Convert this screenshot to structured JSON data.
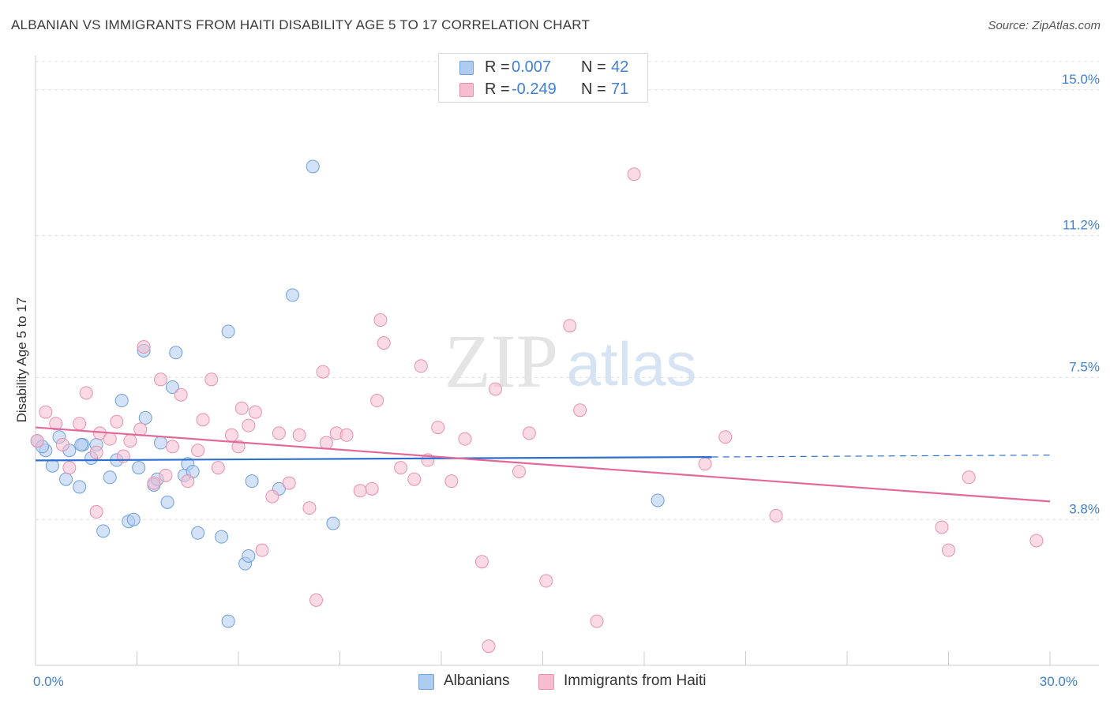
{
  "title": "ALBANIAN VS IMMIGRANTS FROM HAITI DISABILITY AGE 5 TO 17 CORRELATION CHART",
  "source": "Source: ZipAtlas.com",
  "watermark": {
    "zip": "ZIP",
    "atlas": "atlas"
  },
  "colors": {
    "blue_fill": "#aecbf0",
    "blue_stroke": "#6f9fdc",
    "blue_line": "#2d6fcc",
    "pink_fill": "#f6bdd0",
    "pink_stroke": "#e98fae",
    "pink_line": "#e3689a",
    "axis_label": "#3f7fd6",
    "grid": "#dddddd"
  },
  "legend_top": {
    "rows": [
      {
        "series": "Albanians",
        "r_label": "R =",
        "r_value": "0.007",
        "n_label": "N =",
        "n_value": "42"
      },
      {
        "series": "Immigrants from Haiti",
        "r_label": "R =",
        "r_value": "-0.249",
        "n_label": "N =",
        "n_value": "71"
      }
    ]
  },
  "legend_bottom": [
    "Albanians",
    "Immigrants from Haiti"
  ],
  "chart_data": {
    "type": "scatter",
    "title": "ALBANIAN VS IMMIGRANTS FROM HAITI DISABILITY AGE 5 TO 17 CORRELATION CHART",
    "xlabel": "",
    "ylabel": "Disability Age 5 to 17",
    "xlim": [
      0,
      30
    ],
    "ylim": [
      0,
      15.9
    ],
    "x_tick_labels": [
      {
        "value": 0,
        "label": "0.0%"
      },
      {
        "value": 30,
        "label": "30.0%"
      }
    ],
    "y_ticks": [
      {
        "value": 3.8,
        "label": "3.8%"
      },
      {
        "value": 7.5,
        "label": "7.5%"
      },
      {
        "value": 11.2,
        "label": "11.2%"
      },
      {
        "value": 15.0,
        "label": "15.0%"
      }
    ],
    "grid": "horizontal dashed",
    "legend_placement": "top-center and bottom-center",
    "series": [
      {
        "name": "Albanians",
        "color": "#aecbf0",
        "trend": {
          "x": [
            0,
            20
          ],
          "y": [
            5.34,
            5.43
          ],
          "dashed_extension_to": 30,
          "y_at_extension": 5.48
        },
        "points": [
          [
            0.05,
            5.85
          ],
          [
            0.3,
            5.6
          ],
          [
            0.5,
            5.2
          ],
          [
            0.7,
            5.95
          ],
          [
            0.9,
            4.85
          ],
          [
            1.0,
            5.6
          ],
          [
            1.3,
            4.65
          ],
          [
            1.4,
            5.75
          ],
          [
            1.65,
            5.4
          ],
          [
            1.8,
            5.75
          ],
          [
            2.0,
            3.5
          ],
          [
            2.2,
            4.9
          ],
          [
            2.4,
            5.35
          ],
          [
            2.55,
            6.9
          ],
          [
            2.75,
            3.75
          ],
          [
            2.9,
            3.8
          ],
          [
            3.05,
            5.15
          ],
          [
            3.2,
            8.2
          ],
          [
            3.25,
            6.45
          ],
          [
            3.5,
            4.7
          ],
          [
            3.6,
            4.85
          ],
          [
            3.7,
            5.8
          ],
          [
            3.9,
            4.25
          ],
          [
            4.05,
            7.25
          ],
          [
            4.15,
            8.15
          ],
          [
            4.4,
            4.95
          ],
          [
            4.5,
            5.25
          ],
          [
            4.65,
            5.05
          ],
          [
            4.8,
            3.45
          ],
          [
            5.5,
            3.35
          ],
          [
            5.7,
            8.7
          ],
          [
            6.2,
            2.65
          ],
          [
            6.3,
            2.85
          ],
          [
            6.4,
            4.8
          ],
          [
            7.2,
            4.6
          ],
          [
            7.6,
            9.65
          ],
          [
            8.2,
            13.0
          ],
          [
            8.8,
            3.7
          ],
          [
            18.4,
            4.3
          ],
          [
            5.7,
            1.15
          ],
          [
            1.35,
            5.75
          ],
          [
            0.2,
            5.7
          ]
        ]
      },
      {
        "name": "Immigrants from Haiti",
        "color": "#f6bdd0",
        "trend": {
          "x": [
            0,
            30
          ],
          "y": [
            6.2,
            4.27
          ]
        },
        "points": [
          [
            0.05,
            5.85
          ],
          [
            0.3,
            6.6
          ],
          [
            0.6,
            6.3
          ],
          [
            0.8,
            5.75
          ],
          [
            1.0,
            5.15
          ],
          [
            1.3,
            6.3
          ],
          [
            1.5,
            7.1
          ],
          [
            1.8,
            5.55
          ],
          [
            1.9,
            6.05
          ],
          [
            2.2,
            5.9
          ],
          [
            2.4,
            6.35
          ],
          [
            2.6,
            5.45
          ],
          [
            2.8,
            5.85
          ],
          [
            3.1,
            6.15
          ],
          [
            3.2,
            8.3
          ],
          [
            3.5,
            4.75
          ],
          [
            3.7,
            7.45
          ],
          [
            3.85,
            4.95
          ],
          [
            4.05,
            5.7
          ],
          [
            4.3,
            7.05
          ],
          [
            4.5,
            4.8
          ],
          [
            4.8,
            5.6
          ],
          [
            4.95,
            6.4
          ],
          [
            5.2,
            7.45
          ],
          [
            5.4,
            5.15
          ],
          [
            5.8,
            6.0
          ],
          [
            6.0,
            5.7
          ],
          [
            6.1,
            6.7
          ],
          [
            6.3,
            6.25
          ],
          [
            6.5,
            6.6
          ],
          [
            6.7,
            3.0
          ],
          [
            7.0,
            4.4
          ],
          [
            7.2,
            6.05
          ],
          [
            7.5,
            4.75
          ],
          [
            7.8,
            6.0
          ],
          [
            8.1,
            4.1
          ],
          [
            8.3,
            1.7
          ],
          [
            8.5,
            7.65
          ],
          [
            8.6,
            5.8
          ],
          [
            8.9,
            6.05
          ],
          [
            9.2,
            6.0
          ],
          [
            9.6,
            4.55
          ],
          [
            9.95,
            4.6
          ],
          [
            10.1,
            6.9
          ],
          [
            10.2,
            9.0
          ],
          [
            10.3,
            8.4
          ],
          [
            10.8,
            5.15
          ],
          [
            11.2,
            4.85
          ],
          [
            11.4,
            7.8
          ],
          [
            11.6,
            5.35
          ],
          [
            11.9,
            6.2
          ],
          [
            12.3,
            4.8
          ],
          [
            12.7,
            5.9
          ],
          [
            13.2,
            2.7
          ],
          [
            13.4,
            0.5
          ],
          [
            13.6,
            7.2
          ],
          [
            14.3,
            5.05
          ],
          [
            14.6,
            6.05
          ],
          [
            15.1,
            2.2
          ],
          [
            15.8,
            8.85
          ],
          [
            16.1,
            6.65
          ],
          [
            16.6,
            1.15
          ],
          [
            17.7,
            12.8
          ],
          [
            19.8,
            5.25
          ],
          [
            20.4,
            5.95
          ],
          [
            21.9,
            3.9
          ],
          [
            26.8,
            3.6
          ],
          [
            27.0,
            3.0
          ],
          [
            27.6,
            4.9
          ],
          [
            29.6,
            3.25
          ],
          [
            1.8,
            4.0
          ]
        ]
      }
    ]
  }
}
